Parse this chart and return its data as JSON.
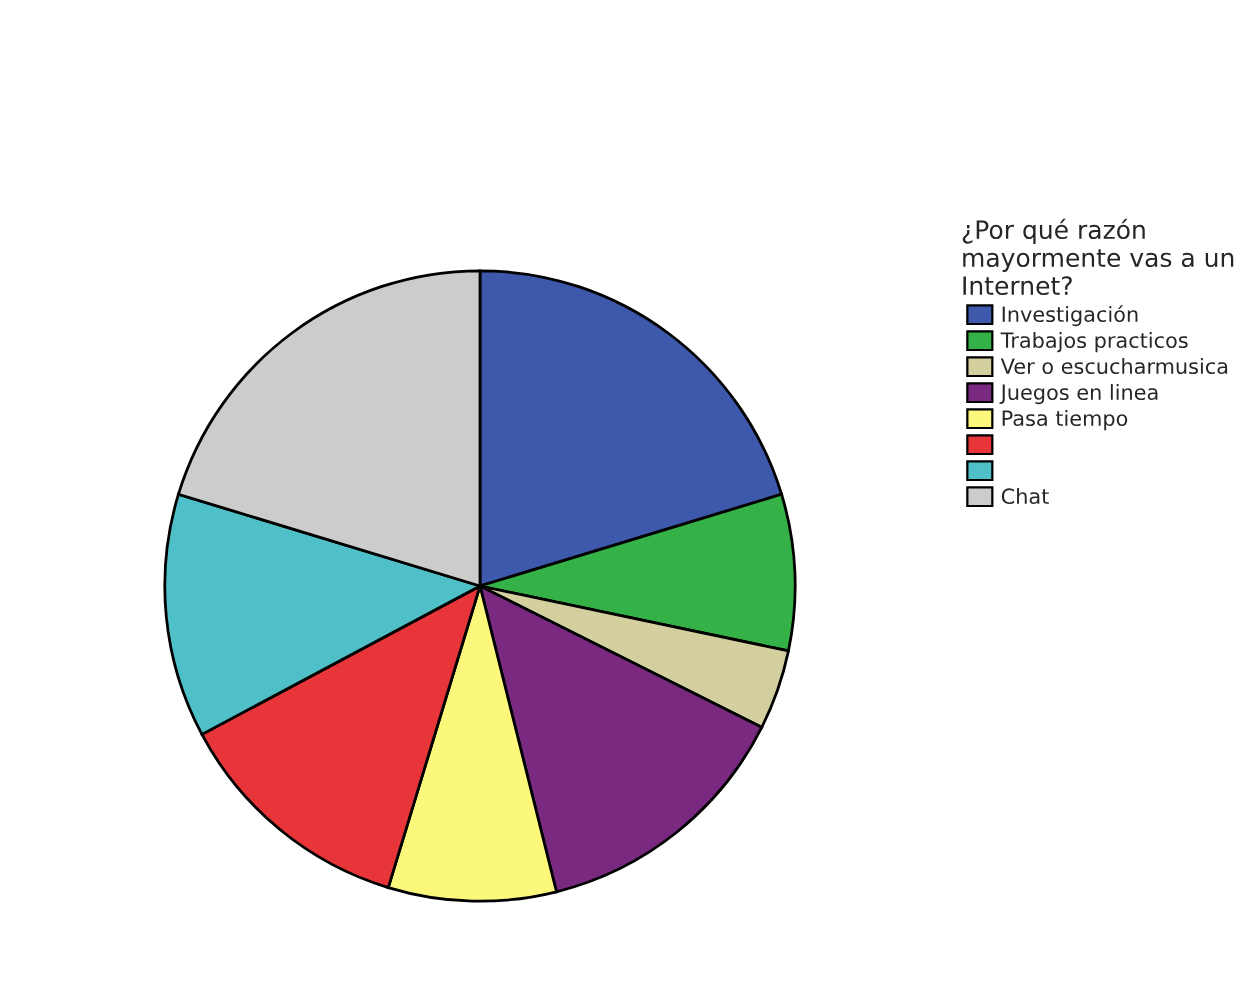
{
  "chart_data": {
    "type": "pie",
    "legend_title": "¿Por qué razón\nmayormente vas a un\nInternet?",
    "legend": "right",
    "categories": [
      "Investigación",
      "Trabajos practicos",
      "Ver o escucharmusica",
      "Juegos en linea",
      "Pasa tiempo",
      null,
      null,
      "Chat"
    ],
    "values": [
      20.3,
      8.0,
      4.1,
      13.7,
      8.6,
      12.5,
      12.5,
      20.3
    ],
    "colors": [
      "#3e58ac",
      "#34b248",
      "#d4cf9e",
      "#79297f",
      "#fbf87c",
      "#e8353a",
      "#4fc0c8",
      "#cccccc"
    ]
  }
}
